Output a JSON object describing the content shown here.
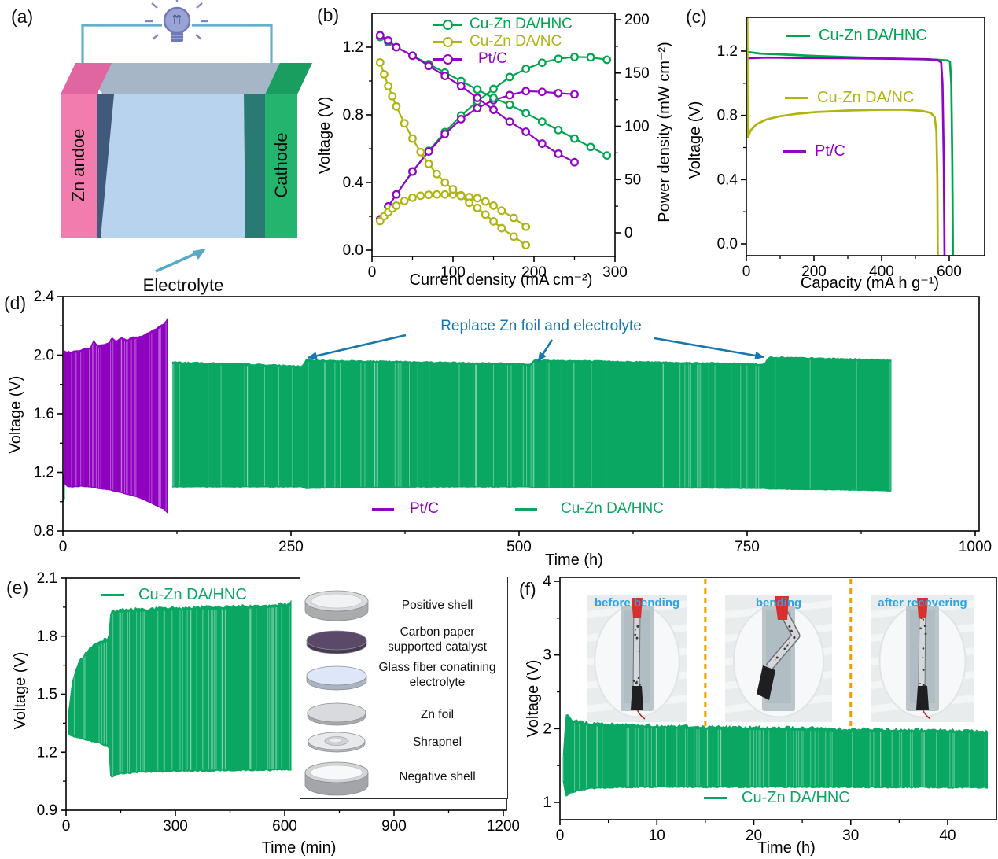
{
  "panels": {
    "a": "(a)",
    "b": "(b)",
    "c": "(c)",
    "d": "(d)",
    "e": "(e)",
    "f": "(f)"
  },
  "panel_a": {
    "anode": "Zn andoe",
    "cathode": "Cathode",
    "electrolyte": "Electrolyte",
    "colors": {
      "anode": "#f17cad",
      "anode_top": "#df66a0",
      "cathode": "#25b46e",
      "cathode_top": "#1a9e60",
      "cathode_side": "#178a55",
      "electrolyte": "#b7d3ee",
      "electrolyte_top": "#a6b6c6",
      "shadow_left": "#41597a",
      "shadow_right": "#2a7a74",
      "wire": "#64afc9",
      "bulb": "#99a3d4",
      "bulb_dark": "#6f78b8",
      "arrow": "#57aac4"
    }
  },
  "chart_data": [
    {
      "panel": "b",
      "type": "line",
      "xlabel": "Current density (mA cm⁻²)",
      "ylabel": "Voltage (V)",
      "y2label": "Power density (mW cm⁻²)",
      "xlim": [
        0,
        300
      ],
      "ylim": [
        0,
        1.4
      ],
      "y2lim": [
        0,
        200
      ],
      "x_ticks": {
        "v": [
          0,
          100,
          200,
          300
        ],
        "t": [
          "0",
          "100",
          "200",
          "300"
        ]
      },
      "y_ticks": {
        "v": [
          0,
          0.4,
          0.8,
          1.2
        ],
        "t": [
          "0.0",
          "0.4",
          "0.8",
          "1.2"
        ]
      },
      "y2_ticks": {
        "v": [
          0,
          50,
          100,
          150,
          200
        ],
        "t": [
          "0",
          "50",
          "100",
          "150",
          "200"
        ]
      },
      "legend": [
        "Cu-Zn DA/HNC",
        "Cu-Zn DA/NC",
        "Pt/C"
      ],
      "colors": {
        "hnc": "#00a550",
        "nc": "#b0b411",
        "ptc": "#9203c6"
      },
      "series": [
        {
          "name": "Cu-Zn DA/HNC power",
          "type": "line-markers",
          "axis": "y2",
          "color": "#00a550",
          "x": [
            10,
            20,
            30,
            50,
            70,
            90,
            110,
            130,
            150,
            170,
            190,
            210,
            230,
            250,
            270,
            290
          ],
          "y": [
            12.6,
            24.6,
            36,
            57.5,
            77,
            94.5,
            110,
            123.5,
            135,
            146.2,
            153.9,
            159.6,
            163.3,
            165,
            164.7,
            162.4
          ]
        },
        {
          "name": "Pt/C power",
          "type": "line-markers",
          "axis": "y2",
          "color": "#9203c6",
          "x": [
            10,
            20,
            30,
            50,
            70,
            90,
            110,
            130,
            150,
            170,
            190,
            210,
            230,
            250
          ],
          "y": [
            12.7,
            24.8,
            36,
            57.5,
            76.3,
            92.7,
            106.7,
            117,
            124.5,
            129.2,
            133,
            132.3,
            131.1,
            130
          ]
        },
        {
          "name": "Cu-Zn DA/NC power",
          "type": "line-markers",
          "axis": "y2",
          "color": "#b0b411",
          "x": [
            10,
            15,
            20,
            25,
            30,
            40,
            50,
            60,
            70,
            80,
            90,
            100,
            110,
            120,
            130,
            140,
            150,
            160,
            175,
            190
          ],
          "y": [
            11.1,
            15.6,
            19.4,
            22.8,
            25.5,
            30,
            33,
            34.8,
            35.7,
            36,
            36,
            36,
            35.2,
            33.6,
            32.5,
            29.4,
            25.5,
            20.8,
            14,
            5.7
          ]
        },
        {
          "name": "Cu-Zn DA/HNC voltage",
          "type": "line-markers",
          "axis": "y",
          "color": "#00a550",
          "x": [
            10,
            20,
            30,
            50,
            70,
            90,
            110,
            130,
            150,
            170,
            190,
            210,
            230,
            250,
            270,
            290
          ],
          "y": [
            1.26,
            1.23,
            1.2,
            1.15,
            1.1,
            1.05,
            1.0,
            0.95,
            0.9,
            0.86,
            0.81,
            0.76,
            0.71,
            0.66,
            0.61,
            0.56
          ]
        },
        {
          "name": "Pt/C voltage",
          "type": "line-markers",
          "axis": "y",
          "color": "#9203c6",
          "x": [
            10,
            20,
            30,
            50,
            70,
            90,
            110,
            130,
            150,
            170,
            190,
            210,
            230,
            250
          ],
          "y": [
            1.27,
            1.24,
            1.2,
            1.15,
            1.09,
            1.03,
            0.97,
            0.9,
            0.83,
            0.76,
            0.7,
            0.63,
            0.57,
            0.52
          ]
        },
        {
          "name": "Cu-Zn DA/NC voltage",
          "type": "line-markers",
          "axis": "y",
          "color": "#b0b411",
          "x": [
            10,
            15,
            20,
            25,
            30,
            40,
            50,
            60,
            70,
            80,
            90,
            100,
            110,
            120,
            130,
            140,
            150,
            160,
            175,
            190
          ],
          "y": [
            1.11,
            1.04,
            0.97,
            0.91,
            0.85,
            0.75,
            0.66,
            0.58,
            0.51,
            0.45,
            0.4,
            0.36,
            0.32,
            0.28,
            0.25,
            0.21,
            0.17,
            0.13,
            0.08,
            0.03
          ]
        }
      ]
    },
    {
      "panel": "c",
      "type": "line",
      "xlabel": "Capacity (mA h g⁻¹)",
      "ylabel": "Voltage (V)",
      "xlim": [
        0,
        700
      ],
      "ylim": [
        0,
        1.4
      ],
      "x_ticks": {
        "v": [
          0,
          200,
          400,
          600
        ],
        "t": [
          "0",
          "200",
          "400",
          "600"
        ]
      },
      "y_ticks": {
        "v": [
          0,
          0.4,
          0.8,
          1.2
        ],
        "t": [
          "0.0",
          "0.4",
          "0.8",
          "1.2"
        ]
      },
      "legend": [
        "Cu-Zn DA/HNC",
        "Cu-Zn DA/NC",
        "Pt/C"
      ],
      "series": [
        {
          "name": "Cu-Zn DA/HNC",
          "type": "line",
          "color": "#00a550",
          "pts": [
            [
              2,
              1.195
            ],
            [
              40,
              1.185
            ],
            [
              100,
              1.18
            ],
            [
              200,
              1.17
            ],
            [
              300,
              1.163
            ],
            [
              400,
              1.157
            ],
            [
              500,
              1.15
            ],
            [
              560,
              1.147
            ],
            [
              595,
              1.142
            ],
            [
              602,
              1.135
            ],
            [
              606,
              1.0
            ],
            [
              609,
              0.5
            ],
            [
              611,
              -0.07
            ]
          ]
        },
        {
          "name": "Pt/C",
          "type": "line",
          "color": "#9203c6",
          "pts": [
            [
              2,
              1.155
            ],
            [
              60,
              1.16
            ],
            [
              150,
              1.158
            ],
            [
              300,
              1.156
            ],
            [
              450,
              1.152
            ],
            [
              530,
              1.15
            ],
            [
              565,
              1.145
            ],
            [
              576,
              1.13
            ],
            [
              580,
              1.0
            ],
            [
              584,
              0.5
            ],
            [
              586,
              -0.07
            ]
          ]
        },
        {
          "name": "Cu-Zn DA/NC",
          "type": "line",
          "color": "#b0b411",
          "pts": [
            [
              3,
              1.41
            ],
            [
              4,
              0.66
            ],
            [
              12,
              0.705
            ],
            [
              30,
              0.745
            ],
            [
              60,
              0.775
            ],
            [
              100,
              0.795
            ],
            [
              150,
              0.81
            ],
            [
              200,
              0.82
            ],
            [
              300,
              0.83
            ],
            [
              400,
              0.835
            ],
            [
              470,
              0.835
            ],
            [
              520,
              0.828
            ],
            [
              545,
              0.815
            ],
            [
              557,
              0.79
            ],
            [
              562,
              0.7
            ],
            [
              565,
              0.4
            ],
            [
              566,
              -0.07
            ]
          ]
        }
      ]
    },
    {
      "panel": "d",
      "type": "band",
      "xlabel": "Time (h)",
      "ylabel": "Voltage (V)",
      "xlim": [
        0,
        1000
      ],
      "ylim": [
        0.8,
        2.4
      ],
      "x_ticks": {
        "v": [
          0,
          250,
          500,
          750,
          1000
        ],
        "t": [
          "0",
          "250",
          "500",
          "750",
          "1000"
        ]
      },
      "y_ticks": {
        "v": [
          0.8,
          1.2,
          1.6,
          2.0,
          2.4
        ],
        "t": [
          "0.8",
          "1.2",
          "1.6",
          "2.0",
          "2.4"
        ]
      },
      "legend": [
        "Pt/C",
        "Cu-Zn DA/HNC"
      ],
      "annotation": "Replace Zn foil and electrolyte",
      "annotation_color": "#1878ad",
      "replace_times_h": [
        265,
        515,
        775
      ],
      "series": [
        {
          "name": "start sliver",
          "type": "band",
          "color": "#00a550",
          "jitter": 1,
          "streaks": 2,
          "x": [
            0.5,
            3
          ],
          "top": [
            1.18,
            1.16
          ],
          "bottom": [
            1.0,
            1.04
          ]
        },
        {
          "name": "Pt/C",
          "type": "band",
          "color": "#8f03c0",
          "jitter": 1.5,
          "streaks": 28,
          "x": [
            1,
            5,
            10,
            20,
            30,
            34,
            38,
            50,
            54,
            58,
            64,
            70,
            76,
            82,
            90,
            100,
            110,
            115
          ],
          "top": [
            2.03,
            2.02,
            2.02,
            2.035,
            2.05,
            2.1,
            2.06,
            2.08,
            2.12,
            2.09,
            2.12,
            2.1,
            2.12,
            2.12,
            2.14,
            2.17,
            2.21,
            2.25
          ],
          "bottom": [
            1.13,
            1.1,
            1.1,
            1.105,
            1.1,
            1.095,
            1.09,
            1.08,
            1.075,
            1.07,
            1.06,
            1.05,
            1.04,
            1.03,
            1.01,
            0.98,
            0.95,
            0.92
          ]
        },
        {
          "name": "Cu-Zn DA/HNC",
          "type": "band",
          "color": "#0aa763",
          "jitter": 1.5,
          "streaks": 70,
          "x": [
            120,
            160,
            210,
            255,
            262,
            266,
            310,
            360,
            410,
            460,
            505,
            512,
            517,
            560,
            610,
            660,
            710,
            755,
            768,
            774,
            820,
            870,
            908
          ],
          "top": [
            1.95,
            1.945,
            1.935,
            1.925,
            1.92,
            1.965,
            1.96,
            1.955,
            1.95,
            1.945,
            1.94,
            1.935,
            1.965,
            1.96,
            1.955,
            1.95,
            1.945,
            1.94,
            1.935,
            1.985,
            1.978,
            1.972,
            1.965
          ],
          "bottom": [
            1.1,
            1.1,
            1.1,
            1.1,
            1.1,
            1.09,
            1.095,
            1.097,
            1.1,
            1.1,
            1.1,
            1.1,
            1.093,
            1.094,
            1.095,
            1.094,
            1.092,
            1.09,
            1.09,
            1.085,
            1.082,
            1.078,
            1.072
          ]
        }
      ]
    },
    {
      "panel": "e",
      "type": "band",
      "xlabel": "Time (min)",
      "ylabel": "Voltage (V)",
      "xlim": [
        0,
        1200
      ],
      "ylim": [
        0.9,
        2.1
      ],
      "x_ticks": {
        "v": [
          0,
          300,
          600,
          900,
          1200
        ],
        "t": [
          "0",
          "300",
          "600",
          "900",
          "1200"
        ]
      },
      "y_ticks": {
        "v": [
          0.9,
          1.2,
          1.5,
          1.8,
          2.1
        ],
        "t": [
          "0.9",
          "1.2",
          "1.5",
          "1.8",
          "2.1"
        ]
      },
      "legend": [
        "Cu-Zn DA/HNC"
      ],
      "series": [
        {
          "name": "Cu-Zn DA/HNC",
          "type": "band",
          "color": "#0aa763",
          "jitter": 4,
          "streaks": 55,
          "x": [
            5,
            8,
            12,
            20,
            30,
            45,
            60,
            80,
            100,
            112,
            117,
            122,
            128,
            145,
            200,
            300,
            400,
            500,
            560,
            610,
            618
          ],
          "top": [
            1.38,
            1.41,
            1.5,
            1.58,
            1.64,
            1.69,
            1.72,
            1.75,
            1.77,
            1.78,
            1.79,
            1.915,
            1.925,
            1.93,
            1.935,
            1.94,
            1.945,
            1.95,
            1.955,
            1.962,
            1.975
          ],
          "bottom": [
            1.3,
            1.295,
            1.29,
            1.285,
            1.278,
            1.27,
            1.262,
            1.252,
            1.243,
            1.235,
            1.23,
            1.065,
            1.075,
            1.09,
            1.098,
            1.103,
            1.106,
            1.108,
            1.109,
            1.11,
            1.11
          ]
        }
      ]
    },
    {
      "panel": "f",
      "type": "band",
      "xlabel": "Time (h)",
      "ylabel": "Voltage (V)",
      "xlim": [
        0,
        45
      ],
      "ylim": [
        1,
        4
      ],
      "x_ticks": {
        "v": [
          0,
          10,
          20,
          30,
          40
        ],
        "t": [
          "0",
          "10",
          "20",
          "30",
          "40"
        ]
      },
      "y_ticks": {
        "v": [
          1,
          2,
          3,
          4
        ],
        "t": [
          "1",
          "2",
          "3",
          "4"
        ]
      },
      "legend": [
        "Cu-Zn DA/HNC"
      ],
      "insets": [
        "before bending",
        "bending",
        "after recovering"
      ],
      "inset_label_color": "#2ba3e8",
      "divider_times": [
        15,
        30
      ],
      "divider_color": "#f39c00",
      "series": [
        {
          "name": "Cu-Zn DA/HNC",
          "type": "band",
          "color": "#0aa763",
          "jitter": 4,
          "streaks": 80,
          "x": [
            0.3,
            0.6,
            1.0,
            1.5,
            2.5,
            4,
            6,
            9,
            12,
            15,
            18,
            22,
            26,
            30,
            34,
            38,
            42,
            44.2
          ],
          "top": [
            1.6,
            2.17,
            2.13,
            2.1,
            2.07,
            2.05,
            2.04,
            2.03,
            2.02,
            2.01,
            2.005,
            2.0,
            1.99,
            1.98,
            1.975,
            1.968,
            1.96,
            1.955
          ],
          "bottom": [
            1.3,
            1.09,
            1.12,
            1.15,
            1.18,
            1.2,
            1.205,
            1.21,
            1.21,
            1.21,
            1.21,
            1.21,
            1.21,
            1.208,
            1.206,
            1.204,
            1.202,
            1.2
          ]
        }
      ]
    }
  ],
  "schematic": {
    "items": [
      {
        "label": "Positive shell",
        "type": "shell",
        "color": "#d9dbde"
      },
      {
        "label": "Carbon paper supported catalyst",
        "type": "disk",
        "color": "#5a4968"
      },
      {
        "label": "Glass fiber conatining electrolyte",
        "type": "disk",
        "color": "#dde7f8"
      },
      {
        "label": "Zn foil",
        "type": "disk",
        "color": "#d9dadd"
      },
      {
        "label": "Shrapnel",
        "type": "dimple",
        "color": "#e8e9eb"
      },
      {
        "label": "Negative shell",
        "type": "shell-open",
        "color": "#d2d4d8"
      }
    ]
  }
}
